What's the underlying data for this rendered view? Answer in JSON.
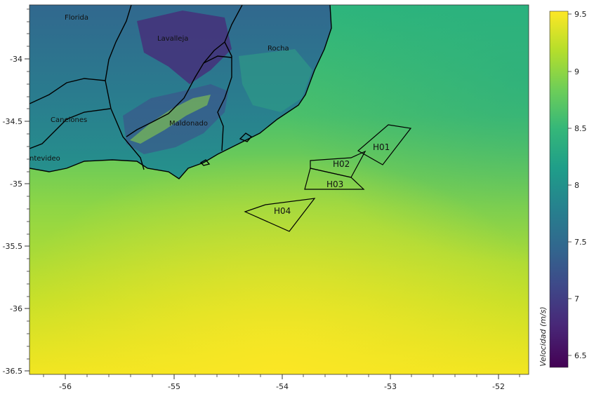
{
  "map": {
    "x_ticks": [
      "-56",
      "-55",
      "-54",
      "-53",
      "-52"
    ],
    "y_ticks": [
      "-34",
      "-34.5",
      "-35",
      "-35.5",
      "-36",
      "-36.5"
    ],
    "regions": [
      {
        "key": "florida",
        "label": "Florida"
      },
      {
        "key": "lavalleja",
        "label": "Lavalleja"
      },
      {
        "key": "rocha",
        "label": "Rocha"
      },
      {
        "key": "canelones",
        "label": "Canelones"
      },
      {
        "key": "maldonado",
        "label": "Maldonado"
      },
      {
        "key": "montevideo",
        "label": "ntevideo"
      }
    ],
    "zones": [
      {
        "key": "h01",
        "label": "H01"
      },
      {
        "key": "h02",
        "label": "H02"
      },
      {
        "key": "h03",
        "label": "H03"
      },
      {
        "key": "h04",
        "label": "H04"
      }
    ]
  },
  "colorbar": {
    "label": "Velocidad (m/s)",
    "ticks": [
      "9.5",
      "9",
      "8.5",
      "8",
      "7.5",
      "7",
      "6.5"
    ],
    "colors": [
      "#fde725",
      "#b5de2b",
      "#6ece58",
      "#35b779",
      "#1f9e89",
      "#26828e",
      "#31688e",
      "#3e4989",
      "#482878",
      "#440154"
    ]
  }
}
